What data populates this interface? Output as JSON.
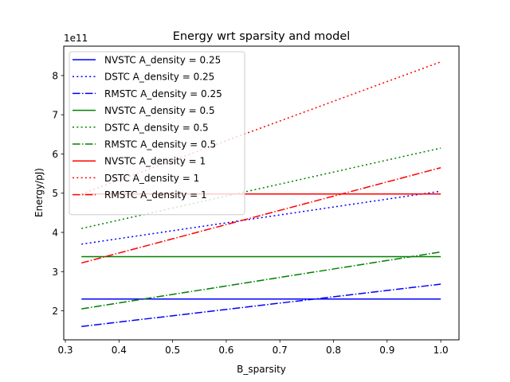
{
  "chart_data": {
    "type": "line",
    "title": "Energy wrt sparsity and model",
    "xlabel": "B_sparsity",
    "ylabel": "Energy/pJ)",
    "offset_text": "1e11",
    "x": [
      0.33,
      1.0
    ],
    "xlim": [
      0.297,
      1.034
    ],
    "ylim": [
      1.26,
      8.75
    ],
    "xticks": [
      0.3,
      0.4,
      0.5,
      0.6,
      0.7,
      0.8,
      0.9,
      1.0
    ],
    "xtick_labels": [
      "0.3",
      "0.4",
      "0.5",
      "0.6",
      "0.7",
      "0.8",
      "0.9",
      "1.0"
    ],
    "yticks": [
      2,
      3,
      4,
      5,
      6,
      7,
      8
    ],
    "ytick_labels": [
      "2",
      "3",
      "4",
      "5",
      "6",
      "7",
      "8"
    ],
    "grid": false,
    "legend_position": "upper-left",
    "series": [
      {
        "name": "NVSTC A_density = 0.25",
        "color": "#0000ff",
        "style": "solid",
        "values": [
          2.3,
          2.3
        ]
      },
      {
        "name": "DSTC A_density = 0.25",
        "color": "#0000ff",
        "style": "dotted",
        "values": [
          3.7,
          5.05
        ]
      },
      {
        "name": "RMSTC A_density = 0.25",
        "color": "#0000ff",
        "style": "dashdot",
        "values": [
          1.6,
          2.68
        ]
      },
      {
        "name": "NVSTC A_density = 0.5",
        "color": "#008000",
        "style": "solid",
        "values": [
          3.38,
          3.38
        ]
      },
      {
        "name": "DSTC A_density = 0.5",
        "color": "#008000",
        "style": "dotted",
        "values": [
          4.1,
          6.15
        ]
      },
      {
        "name": "RMSTC A_density = 0.5",
        "color": "#008000",
        "style": "dashdot",
        "values": [
          2.05,
          3.5
        ]
      },
      {
        "name": "NVSTC A_density = 1",
        "color": "#ff0000",
        "style": "solid",
        "values": [
          4.98,
          4.98
        ]
      },
      {
        "name": "DSTC A_density = 1",
        "color": "#ff0000",
        "style": "dotted",
        "values": [
          4.98,
          8.35
        ]
      },
      {
        "name": "RMSTC A_density = 1",
        "color": "#ff0000",
        "style": "dashdot",
        "values": [
          3.22,
          5.65
        ]
      }
    ]
  }
}
